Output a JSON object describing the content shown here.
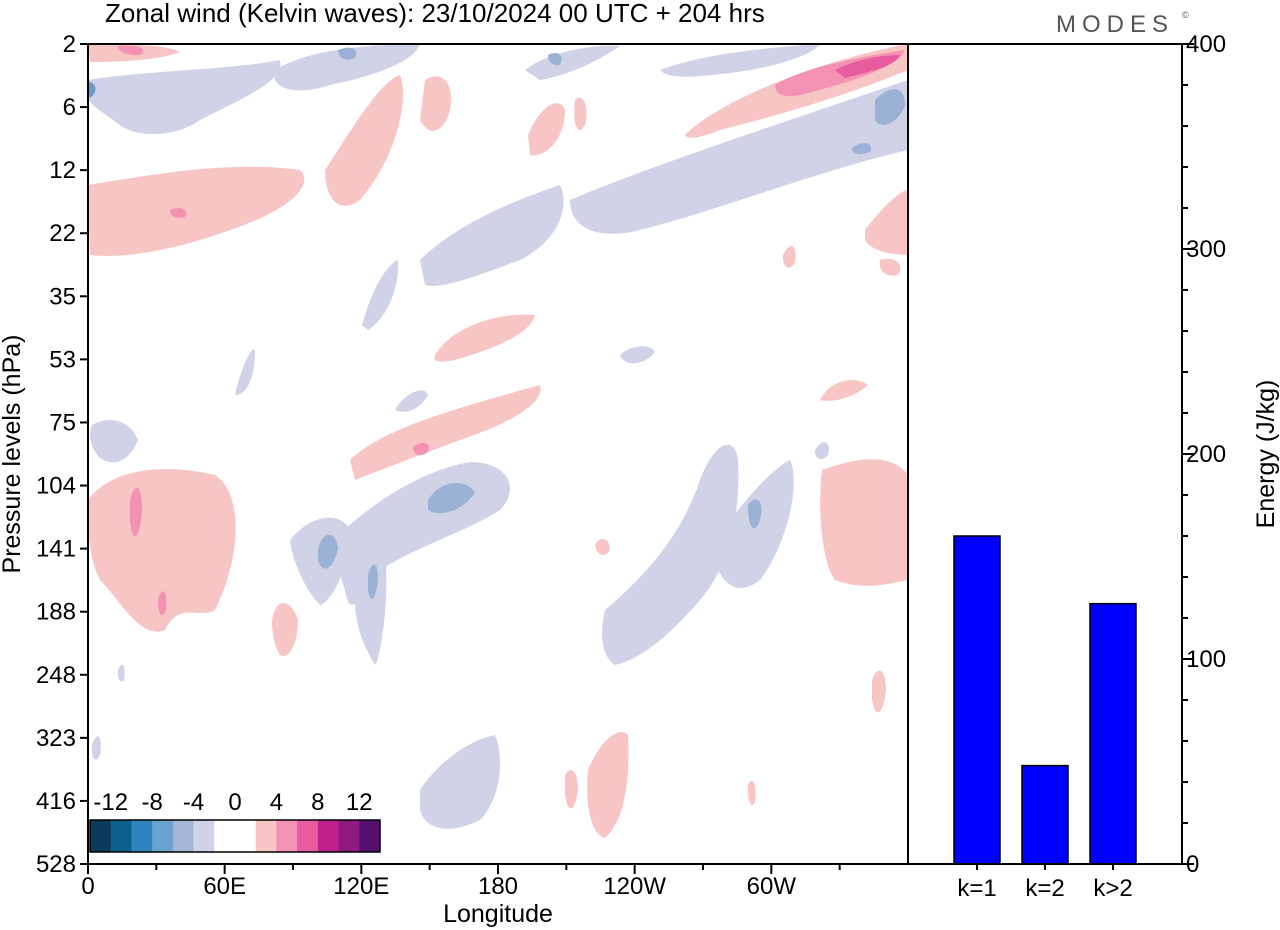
{
  "title": "Zonal wind (Kelvin waves):  23/10/2024  00 UTC  + 204 hrs",
  "brand": "MODES",
  "brand_mark": "©",
  "colors": {
    "neg_light": "#d0d3e8",
    "neg_mid": "#9bb2d4",
    "neg_dark": "#6d99c9",
    "pos_light": "#f8c5c5",
    "pos_mid": "#f492b3",
    "pos_dark": "#e85b9e",
    "bar": "#0000ff"
  },
  "chart_data": [
    {
      "type": "heatmap",
      "title": "Zonal wind (Kelvin waves):  23/10/2024  00 UTC  + 204 hrs",
      "xlabel": "Longitude",
      "ylabel": "Pressure levels (hPa)",
      "x_ticks": [
        "0",
        "60E",
        "120E",
        "180",
        "120W",
        "60W"
      ],
      "y_ticks": [
        "2",
        "6",
        "12",
        "22",
        "35",
        "53",
        "75",
        "104",
        "141",
        "188",
        "248",
        "323",
        "416",
        "528"
      ],
      "colorbar": {
        "tick_labels": [
          "-12",
          "-8",
          "-4",
          "0",
          "4",
          "8",
          "12"
        ],
        "colors": [
          "#0b3a5c",
          "#0e5f8f",
          "#2f84bd",
          "#6aa3cf",
          "#a2b6d8",
          "#d0d3e8",
          "#ffffff",
          "#ffffff",
          "#f8c5c5",
          "#f492b3",
          "#e85b9e",
          "#c2208c",
          "#8c1a7f",
          "#55106e"
        ]
      }
    },
    {
      "type": "bar",
      "categories": [
        "k=1",
        "k=2",
        "k>2"
      ],
      "values": [
        160,
        48,
        127
      ],
      "ylabel": "Energy (J/kg)",
      "ylim": [
        0,
        400
      ],
      "y_ticks": [
        "0",
        "100",
        "200",
        "300",
        "400"
      ]
    }
  ]
}
